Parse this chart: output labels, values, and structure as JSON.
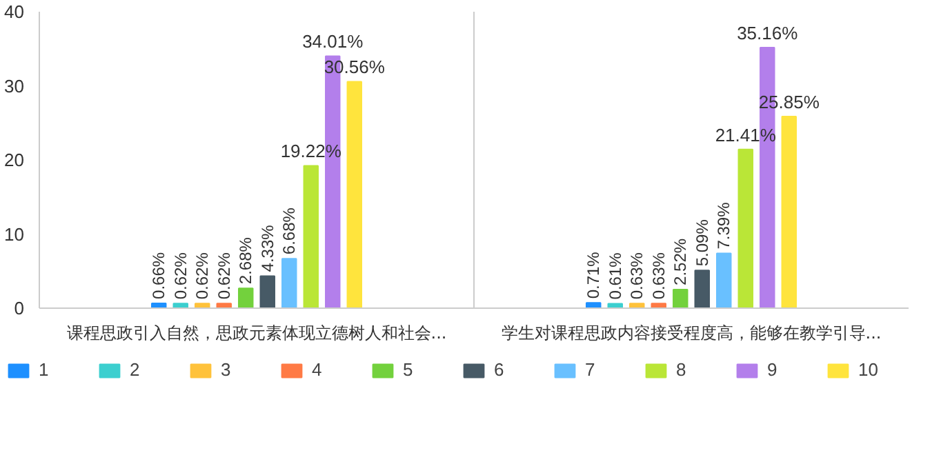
{
  "chart_data": {
    "type": "bar",
    "categories": [
      "课程思政引入自然，思政元素体现立德树人和社会...",
      "学生对课程思政内容接受程度高，能够在教学引导..."
    ],
    "series": [
      {
        "name": "1",
        "color": "#1e90ff",
        "values": [
          0.66,
          0.71
        ],
        "value_labels": [
          "0.66%",
          "0.71%"
        ]
      },
      {
        "name": "2",
        "color": "#3ccfcf",
        "values": [
          0.62,
          0.61
        ],
        "value_labels": [
          "0.62%",
          "0.61%"
        ]
      },
      {
        "name": "3",
        "color": "#ffc23b",
        "values": [
          0.62,
          0.63
        ],
        "value_labels": [
          "0.62%",
          "0.63%"
        ]
      },
      {
        "name": "4",
        "color": "#ff7a45",
        "values": [
          0.62,
          0.63
        ],
        "value_labels": [
          "0.62%",
          "0.63%"
        ]
      },
      {
        "name": "5",
        "color": "#73d13d",
        "values": [
          2.68,
          2.52
        ],
        "value_labels": [
          "2.68%",
          "2.52%"
        ]
      },
      {
        "name": "6",
        "color": "#475a66",
        "values": [
          4.33,
          5.09
        ],
        "value_labels": [
          "4.33%",
          "5.09%"
        ]
      },
      {
        "name": "7",
        "color": "#69c0ff",
        "values": [
          6.68,
          7.39
        ],
        "value_labels": [
          "6.68%",
          "7.39%"
        ]
      },
      {
        "name": "8",
        "color": "#bae637",
        "values": [
          19.22,
          21.41
        ],
        "value_labels": [
          "19.22%",
          "21.41%"
        ]
      },
      {
        "name": "9",
        "color": "#b37feb",
        "values": [
          34.01,
          35.16
        ],
        "value_labels": [
          "34.01%",
          "35.16%"
        ]
      },
      {
        "name": "10",
        "color": "#ffe43d",
        "values": [
          30.56,
          25.85
        ],
        "value_labels": [
          "30.56%",
          "25.85%"
        ]
      }
    ],
    "ylim": [
      0,
      40
    ],
    "yticks": [
      0,
      10,
      20,
      30,
      40
    ],
    "grid": "x",
    "legend": "bottom"
  }
}
